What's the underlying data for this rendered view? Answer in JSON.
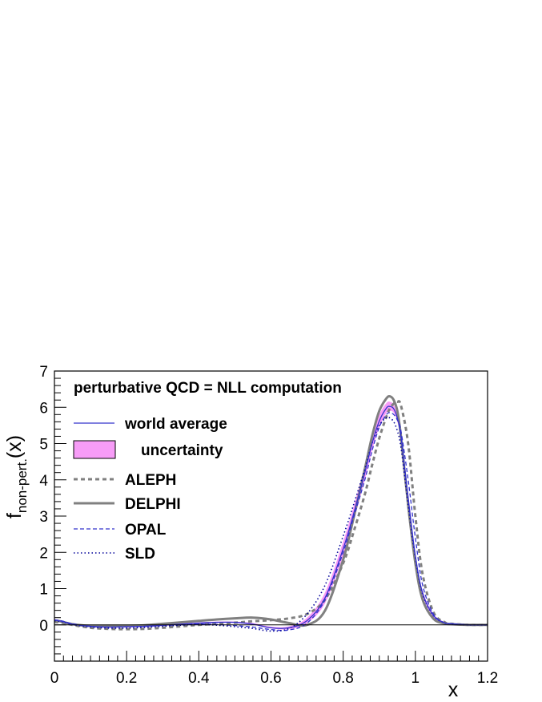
{
  "chart_data": {
    "type": "line",
    "title": "",
    "xlabel": "x",
    "ylabel": {
      "base": "f",
      "subscript": "non-pert.",
      "suffix": "(x)"
    },
    "xlim": [
      0,
      1.2
    ],
    "ylim": [
      -1,
      7
    ],
    "x_ticks": [
      {
        "value": 0,
        "label": "0"
      },
      {
        "value": 0.2,
        "label": "0.2"
      },
      {
        "value": 0.4,
        "label": "0.4"
      },
      {
        "value": 0.6,
        "label": "0.6"
      },
      {
        "value": 0.8,
        "label": "0.8"
      },
      {
        "value": 1.0,
        "label": "1"
      },
      {
        "value": 1.2,
        "label": "1.2"
      }
    ],
    "y_ticks": [
      {
        "value": 0,
        "label": "0"
      },
      {
        "value": 1,
        "label": "1"
      },
      {
        "value": 2,
        "label": "2"
      },
      {
        "value": 3,
        "label": "3"
      },
      {
        "value": 4,
        "label": "4"
      },
      {
        "value": 5,
        "label": "5"
      },
      {
        "value": 6,
        "label": "6"
      },
      {
        "value": 7,
        "label": "7"
      }
    ],
    "annotation": "perturbative QCD = NLL computation",
    "legend_placement": "top-left",
    "x": [
      0,
      0.02,
      0.05,
      0.1,
      0.15,
      0.2,
      0.25,
      0.3,
      0.35,
      0.4,
      0.45,
      0.5,
      0.55,
      0.6,
      0.65,
      0.7,
      0.75,
      0.8,
      0.83,
      0.86,
      0.88,
      0.9,
      0.92,
      0.93,
      0.94,
      0.95,
      0.96,
      0.98,
      1.0,
      1.02,
      1.05,
      1.08,
      1.1,
      1.15,
      1.2
    ],
    "band": {
      "name": "uncertainty",
      "color": "#f79cf7",
      "lower": [
        0.1,
        0.07,
        0.0,
        -0.06,
        -0.08,
        -0.07,
        -0.06,
        -0.03,
        0.0,
        0.03,
        0.05,
        0.05,
        0.0,
        -0.1,
        -0.12,
        0.05,
        0.6,
        1.9,
        2.9,
        4.0,
        4.8,
        5.45,
        5.85,
        5.9,
        5.85,
        5.6,
        5.1,
        3.4,
        1.8,
        0.8,
        0.22,
        0.05,
        0.02,
        0.0,
        0.0
      ],
      "upper": [
        0.16,
        0.12,
        0.04,
        -0.02,
        -0.04,
        -0.03,
        -0.02,
        0.01,
        0.04,
        0.07,
        0.09,
        0.09,
        0.05,
        -0.05,
        -0.04,
        0.2,
        0.9,
        2.3,
        3.3,
        4.4,
        5.2,
        5.8,
        6.12,
        6.15,
        6.07,
        5.8,
        5.3,
        3.65,
        2.0,
        0.95,
        0.3,
        0.08,
        0.04,
        0.01,
        0.0
      ]
    },
    "series": [
      {
        "name": "world average",
        "color": "#3333cc",
        "width": 1.3,
        "dash": "none",
        "values": [
          0.13,
          0.1,
          0.02,
          -0.04,
          -0.06,
          -0.05,
          -0.04,
          -0.01,
          0.02,
          0.05,
          0.07,
          0.07,
          0.02,
          -0.08,
          -0.08,
          0.12,
          0.75,
          2.1,
          3.1,
          4.2,
          5.0,
          5.62,
          5.98,
          6.02,
          5.96,
          5.7,
          5.2,
          3.5,
          1.9,
          0.88,
          0.26,
          0.06,
          0.03,
          0.0,
          0.0
        ]
      },
      {
        "name": "ALEPH",
        "color": "#808080",
        "width": 3,
        "dash": "5,4",
        "values": [
          0.08,
          0.06,
          0.0,
          -0.08,
          -0.11,
          -0.12,
          -0.11,
          -0.08,
          -0.04,
          0.0,
          0.03,
          0.06,
          0.1,
          0.13,
          0.18,
          0.3,
          0.7,
          1.7,
          2.6,
          3.6,
          4.4,
          5.15,
          5.75,
          5.98,
          6.1,
          6.15,
          6.05,
          5.0,
          3.0,
          1.4,
          0.35,
          0.08,
          0.03,
          0.0,
          0.0
        ]
      },
      {
        "name": "DELPHI",
        "color": "#808080",
        "width": 3,
        "dash": "none",
        "values": [
          0.12,
          0.09,
          0.02,
          -0.03,
          -0.04,
          -0.03,
          -0.01,
          0.03,
          0.07,
          0.11,
          0.15,
          0.18,
          0.2,
          0.15,
          0.05,
          0.0,
          0.4,
          1.8,
          3.0,
          4.3,
          5.2,
          5.9,
          6.25,
          6.3,
          6.2,
          5.9,
          5.2,
          3.3,
          1.7,
          0.7,
          0.17,
          0.04,
          0.02,
          0.0,
          0.0
        ]
      },
      {
        "name": "OPAL",
        "color": "#3333cc",
        "width": 1.3,
        "dash": "5,3",
        "values": [
          0.14,
          0.11,
          0.03,
          -0.04,
          -0.06,
          -0.05,
          -0.04,
          -0.02,
          0.0,
          0.02,
          0.01,
          -0.02,
          -0.06,
          -0.13,
          -0.14,
          0.05,
          0.7,
          2.0,
          3.0,
          4.0,
          4.8,
          5.45,
          5.8,
          5.85,
          5.8,
          5.65,
          5.35,
          4.0,
          2.4,
          1.1,
          0.3,
          0.06,
          0.03,
          0.0,
          0.0
        ]
      },
      {
        "name": "SLD",
        "color": "#000099",
        "width": 1.6,
        "dash": "1.5,3",
        "values": [
          0.11,
          0.09,
          0.01,
          -0.06,
          -0.09,
          -0.09,
          -0.07,
          -0.04,
          -0.01,
          0.01,
          -0.01,
          -0.05,
          -0.1,
          -0.17,
          -0.1,
          0.3,
          1.1,
          2.45,
          3.35,
          4.3,
          5.0,
          5.5,
          5.72,
          5.7,
          5.6,
          5.35,
          4.9,
          3.3,
          1.85,
          0.85,
          0.25,
          0.06,
          0.03,
          0.0,
          0.0
        ]
      }
    ]
  }
}
